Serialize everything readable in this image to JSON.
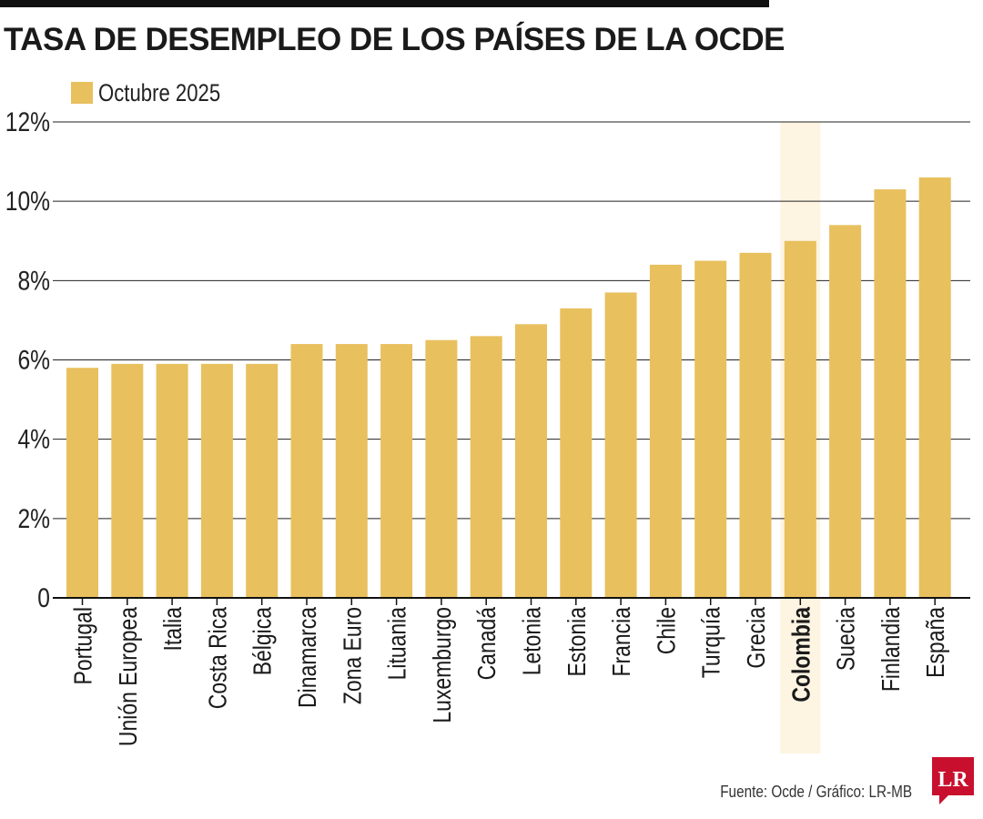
{
  "title": "TASA DE DESEMPLEO DE LOS PAÍSES DE LA OCDE",
  "source": "Fuente: Ocde / Gráfico: LR-MB",
  "logo_text": "LR",
  "colors": {
    "bar": "#E8C05E",
    "highlight": "#FDF4E2",
    "grid": "#222222",
    "logo": "#C8102E"
  },
  "chart_data": {
    "type": "bar",
    "categories": [
      "Portugal",
      "Unión Europea",
      "Italia",
      "Costa Rica",
      "Bélgica",
      "Dinamarca",
      "Zona Euro",
      "Lituania",
      "Luxemburgo",
      "Canadá",
      "Letonia",
      "Estonia",
      "Francia",
      "Chile",
      "Turquía",
      "Grecia",
      "Colombia",
      "Suecia",
      "Finlandia",
      "España"
    ],
    "series": [
      {
        "name": "Octubre 2025",
        "values": [
          5.8,
          5.9,
          5.9,
          5.9,
          5.9,
          6.4,
          6.4,
          6.4,
          6.5,
          6.6,
          6.9,
          7.3,
          7.7,
          8.4,
          8.5,
          8.7,
          9.0,
          9.4,
          10.3,
          10.6
        ]
      }
    ],
    "highlight_category": "Colombia",
    "ylim": [
      0,
      12
    ],
    "yticks": [
      0,
      2,
      4,
      6,
      8,
      10,
      12
    ],
    "ytick_labels": [
      "0",
      "2%",
      "4%",
      "6%",
      "8%",
      "10%",
      "12%"
    ],
    "xlabel": "",
    "ylabel": "",
    "grid": true,
    "legend": "top-left"
  }
}
